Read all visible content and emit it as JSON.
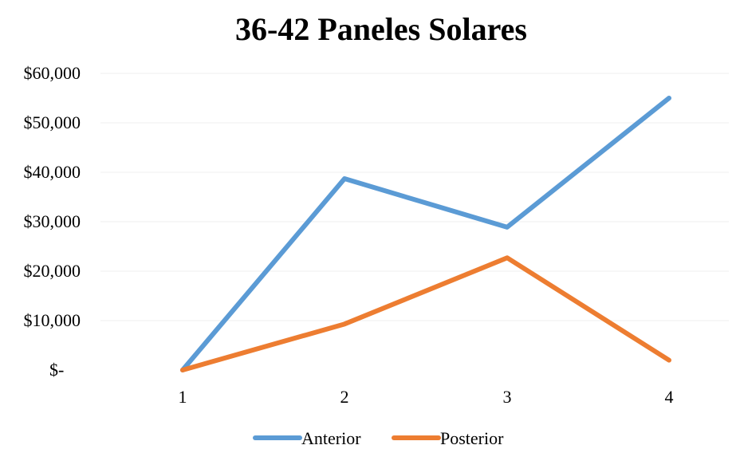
{
  "chart_data": {
    "type": "line",
    "title": "36-42 Paneles Solares",
    "xlabel": "",
    "ylabel": "",
    "categories": [
      "1",
      "2",
      "3",
      "4"
    ],
    "ylim": [
      0,
      60000
    ],
    "y_ticks": [
      0,
      10000,
      20000,
      30000,
      40000,
      50000,
      60000
    ],
    "y_tick_labels": [
      "$-",
      "$10,000",
      "$20,000",
      "$30,000",
      "$40,000",
      "$50,000",
      "$60,000"
    ],
    "grid": true,
    "legend_position": "bottom",
    "series": [
      {
        "name": "Anterior",
        "color": "#5b9bd5",
        "values": [
          0,
          38700,
          28900,
          55000
        ]
      },
      {
        "name": "Posterior",
        "color": "#ed7d31",
        "values": [
          0,
          9300,
          22700,
          2000
        ]
      }
    ]
  }
}
